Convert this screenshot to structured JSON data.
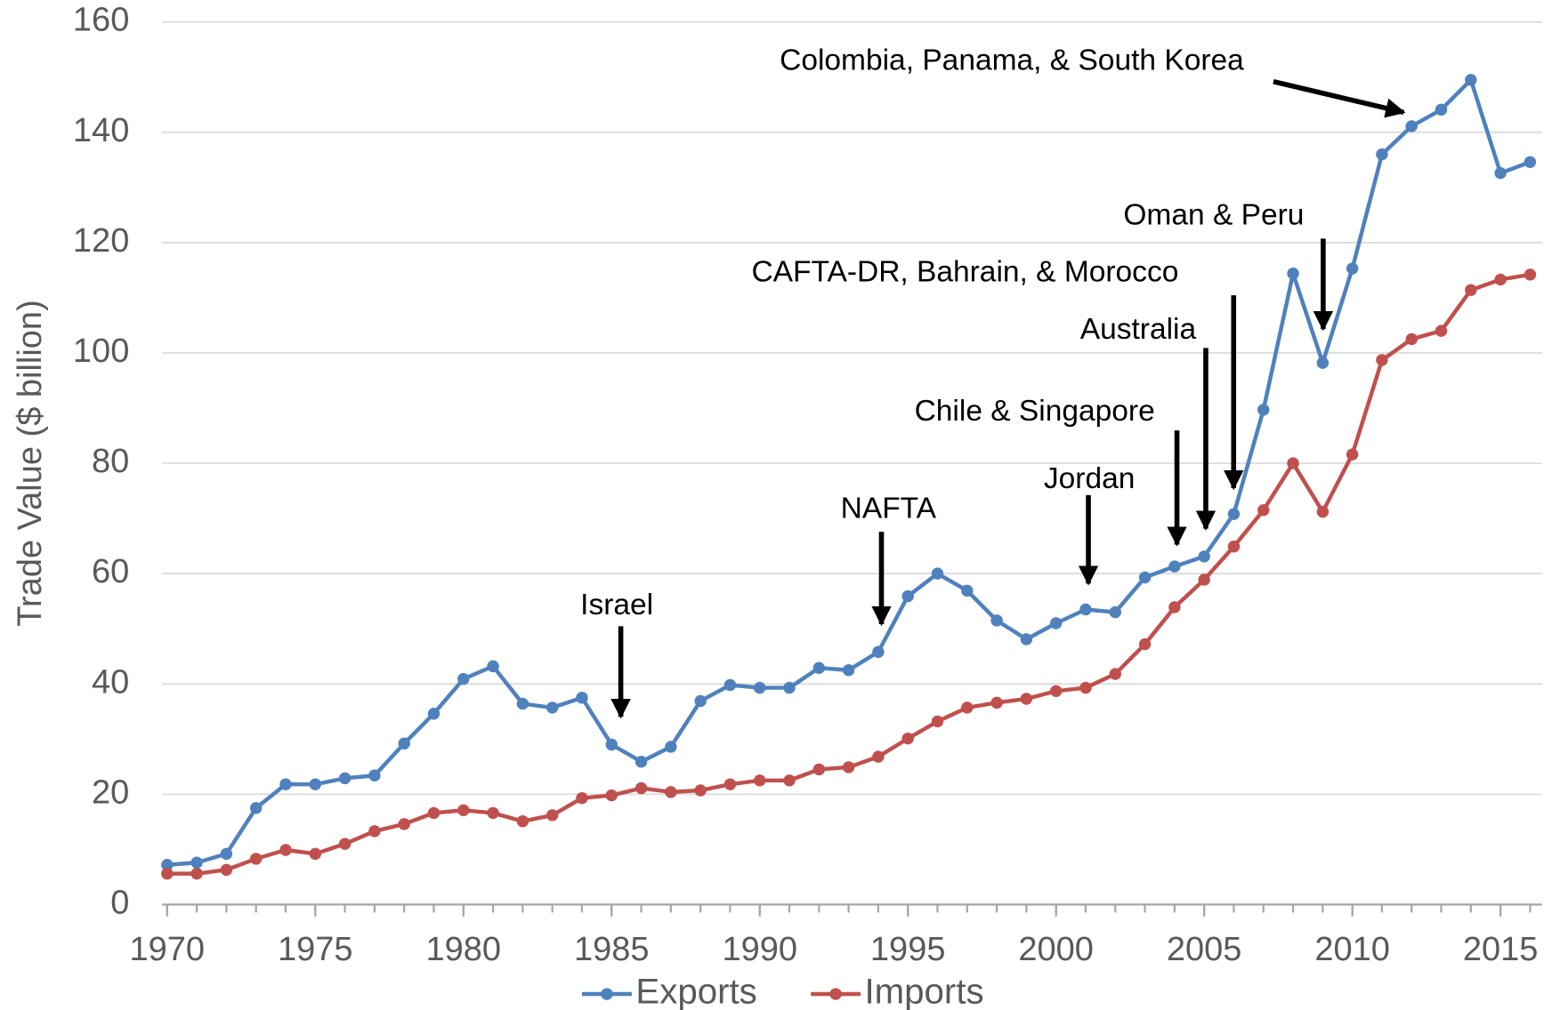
{
  "chart_data": {
    "type": "line",
    "y_label": "Trade Value ($ billion)",
    "x": [
      1970,
      1971,
      1972,
      1973,
      1974,
      1975,
      1976,
      1977,
      1978,
      1979,
      1980,
      1981,
      1982,
      1983,
      1984,
      1985,
      1986,
      1987,
      1988,
      1989,
      1990,
      1991,
      1992,
      1993,
      1994,
      1995,
      1996,
      1997,
      1998,
      1999,
      2000,
      2001,
      2002,
      2003,
      2004,
      2005,
      2006,
      2007,
      2008,
      2009,
      2010,
      2011,
      2012,
      2013,
      2014,
      2015,
      2016
    ],
    "series": [
      {
        "name": "Exports",
        "color": "#4f81bd",
        "values": [
          7.2,
          7.6,
          9.2,
          17.5,
          21.8,
          21.8,
          22.9,
          23.4,
          29.2,
          34.6,
          40.9,
          43.2,
          36.4,
          35.7,
          37.5,
          29.0,
          25.9,
          28.6,
          36.9,
          39.8,
          39.3,
          39.3,
          42.9,
          42.5,
          45.8,
          55.9,
          60.0,
          56.9,
          51.5,
          48.1,
          51.0,
          53.5,
          53.0,
          59.3,
          61.3,
          63.1,
          70.8,
          89.7,
          114.4,
          98.2,
          115.3,
          136.0,
          141.1,
          144.1,
          149.5,
          132.6,
          134.6
        ]
      },
      {
        "name": "Imports",
        "color": "#c0504d",
        "values": [
          5.6,
          5.6,
          6.3,
          8.3,
          9.9,
          9.2,
          11.0,
          13.3,
          14.6,
          16.6,
          17.1,
          16.6,
          15.1,
          16.2,
          19.3,
          19.8,
          21.1,
          20.4,
          20.7,
          21.8,
          22.5,
          22.5,
          24.5,
          24.9,
          26.8,
          30.1,
          33.2,
          35.7,
          36.6,
          37.3,
          38.7,
          39.3,
          41.8,
          47.2,
          53.9,
          58.9,
          64.9,
          71.5,
          80.0,
          71.2,
          81.6,
          98.7,
          102.5,
          104.0,
          111.4,
          113.3,
          114.2
        ]
      }
    ],
    "xlim": [
      1970,
      2016
    ],
    "xticks": [
      1970,
      1975,
      1980,
      1985,
      1990,
      1995,
      2000,
      2005,
      2010,
      2015
    ],
    "ylim": [
      0,
      160
    ],
    "yticks": [
      0,
      20,
      40,
      60,
      80,
      100,
      120,
      140,
      160
    ],
    "grid": true,
    "legend": "bottom",
    "annotations": [
      {
        "text": "Israel",
        "x": 1985
      },
      {
        "text": "NAFTA",
        "x": 1994
      },
      {
        "text": "Jordan",
        "x": 2001
      },
      {
        "text": "Chile & Singapore",
        "x": 2004
      },
      {
        "text": "Australia",
        "x": 2005
      },
      {
        "text": "CAFTA-DR,  Bahrain, & Morocco",
        "x": 2006
      },
      {
        "text": "Oman & Peru",
        "x": 2009
      },
      {
        "text": "Colombia, Panama, & South Korea",
        "x": 2012
      }
    ]
  }
}
